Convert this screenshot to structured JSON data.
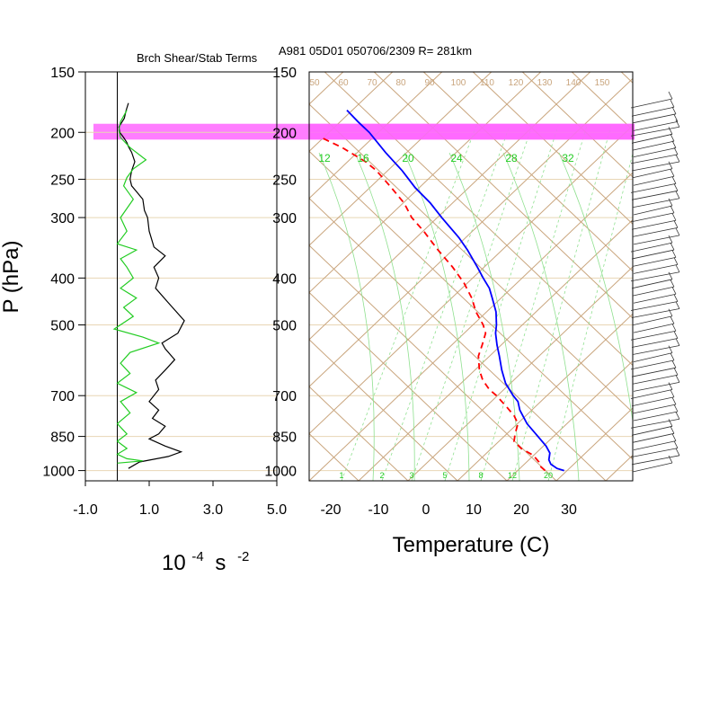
{
  "header": {
    "left_title": "Brch Shear/Stab Terms",
    "right_title": "A981 05D01 050706/2309 R= 281km"
  },
  "chart_data": [
    {
      "type": "line",
      "panel": "shear-stability",
      "title": "Brch Shear/Stab Terms",
      "ylabel": "P (hPa)",
      "xlabel_base": "10",
      "xlabel_exp1": "-4",
      "xlabel_unit": "s",
      "xlabel_exp2": "-2",
      "xlim": [
        -1.0,
        5.0
      ],
      "x_ticks": [
        "-1.0",
        "1.0",
        "3.0",
        "5.0"
      ],
      "x_tick_values": [
        -1.0,
        1.0,
        3.0,
        5.0
      ],
      "y_ticks": [
        "150",
        "200",
        "250",
        "300",
        "400",
        "500",
        "700",
        "850",
        "1000"
      ],
      "y_tick_values": [
        150,
        200,
        250,
        300,
        400,
        500,
        700,
        850,
        1000
      ],
      "ylim": [
        150,
        1050
      ],
      "y_scale": "log (pressure)",
      "highlight_band": {
        "p_top": 192,
        "p_bottom": 207,
        "color": "#ff66ff"
      },
      "series": [
        {
          "color": "#000000",
          "points": [
            [
              0.35,
              174
            ],
            [
              0.28,
              180
            ],
            [
              0.22,
              187
            ],
            [
              0.05,
              195
            ],
            [
              0.08,
              200
            ],
            [
              0.2,
              205
            ],
            [
              0.3,
              210
            ],
            [
              0.35,
              214
            ],
            [
              0.45,
              220
            ],
            [
              0.55,
              230
            ],
            [
              0.45,
              240
            ],
            [
              0.4,
              250
            ],
            [
              0.45,
              258
            ],
            [
              0.6,
              265
            ],
            [
              0.8,
              275
            ],
            [
              0.85,
              290
            ],
            [
              0.95,
              300
            ],
            [
              1.0,
              320
            ],
            [
              1.15,
              345
            ],
            [
              1.5,
              360
            ],
            [
              1.15,
              380
            ],
            [
              1.3,
              400
            ],
            [
              1.2,
              420
            ],
            [
              1.6,
              450
            ],
            [
              2.1,
              490
            ],
            [
              1.9,
              520
            ],
            [
              1.4,
              545
            ],
            [
              1.5,
              560
            ],
            [
              1.8,
              590
            ],
            [
              1.5,
              620
            ],
            [
              1.2,
              650
            ],
            [
              1.3,
              680
            ],
            [
              1.0,
              720
            ],
            [
              1.3,
              750
            ],
            [
              1.1,
              780
            ],
            [
              1.5,
              810
            ],
            [
              1.3,
              840
            ],
            [
              1.0,
              860
            ],
            [
              1.5,
              890
            ],
            [
              2.0,
              915
            ],
            [
              1.6,
              935
            ],
            [
              0.7,
              960
            ],
            [
              0.35,
              990
            ]
          ]
        },
        {
          "color": "#22cc22",
          "points": [
            [
              0.3,
              180
            ],
            [
              0.1,
              190
            ],
            [
              0.05,
              198
            ],
            [
              0.1,
              205
            ],
            [
              0.4,
              215
            ],
            [
              0.9,
              228
            ],
            [
              0.5,
              238
            ],
            [
              0.3,
              248
            ],
            [
              0.2,
              258
            ],
            [
              0.5,
              275
            ],
            [
              0.1,
              300
            ],
            [
              0.3,
              320
            ],
            [
              0.0,
              340
            ],
            [
              0.6,
              350
            ],
            [
              0.1,
              365
            ],
            [
              0.3,
              380
            ],
            [
              0.5,
              400
            ],
            [
              0.1,
              420
            ],
            [
              0.6,
              440
            ],
            [
              0.2,
              460
            ],
            [
              0.5,
              480
            ],
            [
              -0.1,
              510
            ],
            [
              0.8,
              530
            ],
            [
              1.3,
              545
            ],
            [
              0.4,
              570
            ],
            [
              0.1,
              600
            ],
            [
              0.4,
              630
            ],
            [
              0.0,
              660
            ],
            [
              0.6,
              690
            ],
            [
              0.1,
              720
            ],
            [
              0.4,
              760
            ],
            [
              0.0,
              800
            ],
            [
              0.3,
              840
            ],
            [
              0.0,
              870
            ],
            [
              0.3,
              900
            ],
            [
              0.0,
              925
            ],
            [
              0.3,
              945
            ],
            [
              0.8,
              955
            ],
            [
              0.0,
              965
            ]
          ]
        }
      ]
    },
    {
      "type": "line",
      "panel": "skew-t",
      "xlabel": "Temperature (C)",
      "x_ticks": [
        "-20",
        "-10",
        "0",
        "10",
        "20",
        "30"
      ],
      "x_tick_values": [
        -20,
        -10,
        0,
        10,
        20,
        30
      ],
      "y_ticks": [
        "150",
        "200",
        "250",
        "300",
        "400",
        "500",
        "700",
        "850",
        "1000"
      ],
      "y_tick_values": [
        150,
        200,
        250,
        300,
        400,
        500,
        700,
        850,
        1000
      ],
      "mixing_ratio_labels": [
        "12",
        "16",
        "20",
        "24",
        "28",
        "32"
      ],
      "mixing_ratio_labels_bottom": [
        "1",
        "2",
        "3",
        "5",
        "8",
        "12",
        "20"
      ],
      "isotherm_labels_top": [
        "50",
        "60",
        "70",
        "80",
        "90",
        "100",
        "110",
        "120",
        "130",
        "140",
        "150"
      ],
      "series": [
        {
          "name": "",
          "color": "#0000ff",
          "style": "solid",
          "points": [
            [
              1000,
              29.0
            ],
            [
              990,
              27.5
            ],
            [
              970,
              26.2
            ],
            [
              950,
              25.8
            ],
            [
              920,
              26.0
            ],
            [
              890,
              25.2
            ],
            [
              850,
              23.5
            ],
            [
              800,
              21.2
            ],
            [
              750,
              19.7
            ],
            [
              720,
              19.3
            ],
            [
              700,
              18.3
            ],
            [
              660,
              16.7
            ],
            [
              620,
              15.9
            ],
            [
              580,
              15.4
            ],
            [
              550,
              14.9
            ],
            [
              520,
              14.6
            ],
            [
              500,
              14.8
            ],
            [
              470,
              14.7
            ],
            [
              440,
              13.9
            ],
            [
              420,
              13.3
            ],
            [
              400,
              12.0
            ],
            [
              380,
              10.8
            ],
            [
              350,
              8.7
            ],
            [
              330,
              6.9
            ],
            [
              300,
              3.3
            ],
            [
              280,
              0.9
            ],
            [
              260,
              -2.3
            ],
            [
              240,
              -5.0
            ],
            [
              220,
              -8.5
            ],
            [
              200,
              -11.9
            ],
            [
              190,
              -14.3
            ],
            [
              180,
              -16.6
            ]
          ]
        },
        {
          "name": "",
          "color": "#ff0000",
          "style": "dashed",
          "points": [
            [
              1000,
              25.0
            ],
            [
              980,
              24.0
            ],
            [
              960,
              23.7
            ],
            [
              930,
              22.5
            ],
            [
              900,
              20.0
            ],
            [
              870,
              18.5
            ],
            [
              840,
              18.7
            ],
            [
              800,
              19.3
            ],
            [
              770,
              18.5
            ],
            [
              740,
              17.0
            ],
            [
              700,
              14.8
            ],
            [
              680,
              13.3
            ],
            [
              650,
              11.9
            ],
            [
              620,
              11.2
            ],
            [
              580,
              11.0
            ],
            [
              550,
              11.8
            ],
            [
              520,
              12.5
            ],
            [
              500,
              12.0
            ],
            [
              470,
              10.5
            ],
            [
              440,
              9.6
            ],
            [
              410,
              8.0
            ],
            [
              380,
              5.6
            ],
            [
              350,
              2.5
            ],
            [
              320,
              -0.5
            ],
            [
              300,
              -3.0
            ],
            [
              280,
              -4.6
            ],
            [
              260,
              -7.3
            ],
            [
              240,
              -10.4
            ],
            [
              230,
              -12.7
            ],
            [
              215,
              -17.6
            ],
            [
              205,
              -22.0
            ]
          ]
        }
      ]
    }
  ],
  "wind_barbs": {
    "description": "wind barbs along right edge",
    "pressures": [
      175,
      182,
      188,
      195,
      200,
      207,
      214,
      221,
      228,
      236,
      244,
      253,
      262,
      271,
      281,
      291,
      301,
      312,
      323,
      335,
      347,
      359,
      372,
      385,
      399,
      413,
      428,
      443,
      459,
      475,
      492,
      510,
      528,
      547,
      566,
      586,
      607,
      629,
      651,
      674,
      698,
      723,
      749,
      775,
      803,
      831,
      860,
      891,
      922,
      955,
      989
    ]
  }
}
